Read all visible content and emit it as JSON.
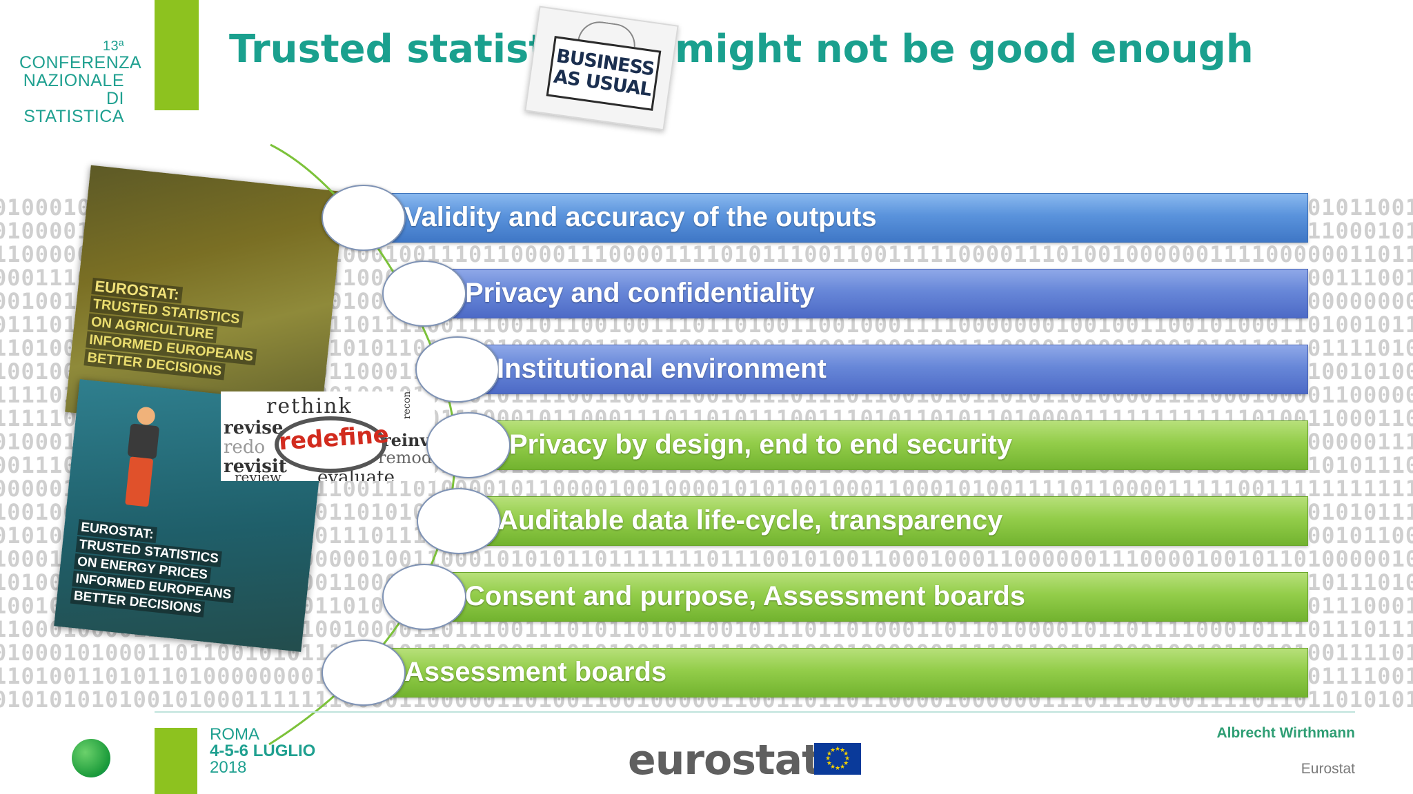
{
  "header": {
    "conference_number": "13ª",
    "conference_lines": [
      "CONFERENZA",
      "NAZIONALE",
      "DI STATISTICA"
    ],
    "title_left": "Trusted statistics",
    "title_right": "might not be good enough",
    "sign_lines": [
      "BUSINESS",
      "AS USUAL"
    ]
  },
  "posters": {
    "agriculture": [
      "EUROSTAT:",
      "TRUSTED STATISTICS",
      "ON AGRICULTURE",
      "INFORMED EUROPEANS",
      "BETTER DECISIONS"
    ],
    "energy": [
      "EUROSTAT:",
      "TRUSTED STATISTICS",
      "ON ENERGY PRICES",
      "INFORMED EUROPEANS",
      "BETTER DECISIONS"
    ],
    "words": [
      "rethink",
      "revise",
      "redo",
      "redefine",
      "reinv",
      "remod",
      "revisit",
      "review",
      "evaluate",
      "reconsider"
    ]
  },
  "items": [
    {
      "label": "Validity and accuracy of the outputs",
      "color": "blue"
    },
    {
      "label": "Privacy and confidentiality",
      "color": "blue"
    },
    {
      "label": "Institutional environment",
      "color": "blue"
    },
    {
      "label": "Privacy by design, end to end security",
      "color": "green"
    },
    {
      "label": "Auditable data life-cycle, transparency",
      "color": "green"
    },
    {
      "label": "Consent and purpose, Assessment boards",
      "color": "green"
    },
    {
      "label": "Assessment boards",
      "color": "green"
    }
  ],
  "footer": {
    "city": "ROMA",
    "dates": "4-5-6 LUGLIO",
    "year": "2018",
    "brand": "eurostat",
    "author": "Albrecht Wirthmann",
    "organization": "Eurostat"
  },
  "colors": {
    "accent_green": "#8dc21f",
    "title_teal": "#1aa08e",
    "bar_blue": "#4f86d2",
    "bar_green": "#86c240"
  }
}
